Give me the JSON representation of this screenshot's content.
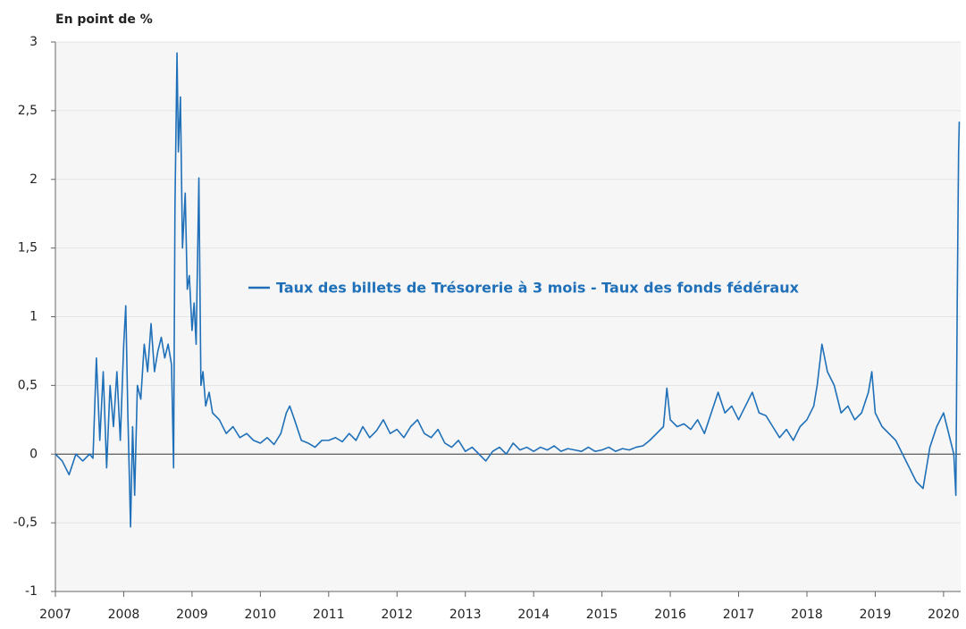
{
  "chart_data": {
    "type": "line",
    "y_axis_label": "En point de %",
    "xlim": [
      2007,
      2020.25
    ],
    "xticks": [
      2007,
      2008,
      2009,
      2010,
      2011,
      2012,
      2013,
      2014,
      2015,
      2016,
      2017,
      2018,
      2019,
      2020
    ],
    "ylim": [
      -1,
      3
    ],
    "yticks": [
      -1,
      {
        "value": -0.5,
        "label": "-0,5"
      },
      0,
      {
        "value": 0.5,
        "label": "0,5"
      },
      1,
      {
        "value": 1.5,
        "label": "1,5"
      },
      2,
      {
        "value": 2.5,
        "label": "2,5"
      },
      3
    ],
    "grid": true,
    "series": [
      {
        "name": "Taux des billets de Trésorerie à 3 mois - Taux des fonds fédéraux",
        "color": "#1f70b8",
        "x": [
          2007.0,
          2007.1,
          2007.2,
          2007.3,
          2007.4,
          2007.5,
          2007.55,
          2007.6,
          2007.65,
          2007.7,
          2007.75,
          2007.8,
          2007.85,
          2007.9,
          2007.95,
          2008.0,
          2008.03,
          2008.06,
          2008.1,
          2008.13,
          2008.16,
          2008.2,
          2008.25,
          2008.3,
          2008.35,
          2008.4,
          2008.45,
          2008.5,
          2008.55,
          2008.6,
          2008.65,
          2008.7,
          2008.73,
          2008.75,
          2008.78,
          2008.8,
          2008.83,
          2008.86,
          2008.9,
          2008.93,
          2008.96,
          2009.0,
          2009.03,
          2009.06,
          2009.1,
          2009.13,
          2009.16,
          2009.2,
          2009.25,
          2009.3,
          2009.4,
          2009.5,
          2009.6,
          2009.7,
          2009.8,
          2009.9,
          2010.0,
          2010.1,
          2010.2,
          2010.3,
          2010.38,
          2010.43,
          2010.5,
          2010.6,
          2010.7,
          2010.8,
          2010.9,
          2011.0,
          2011.1,
          2011.2,
          2011.3,
          2011.4,
          2011.5,
          2011.6,
          2011.7,
          2011.8,
          2011.9,
          2012.0,
          2012.1,
          2012.2,
          2012.3,
          2012.4,
          2012.5,
          2012.6,
          2012.7,
          2012.8,
          2012.9,
          2013.0,
          2013.1,
          2013.2,
          2013.3,
          2013.4,
          2013.5,
          2013.6,
          2013.7,
          2013.8,
          2013.9,
          2014.0,
          2014.1,
          2014.2,
          2014.3,
          2014.4,
          2014.5,
          2014.6,
          2014.7,
          2014.8,
          2014.9,
          2015.0,
          2015.1,
          2015.2,
          2015.3,
          2015.4,
          2015.5,
          2015.6,
          2015.7,
          2015.8,
          2015.9,
          2015.95,
          2016.0,
          2016.1,
          2016.2,
          2016.3,
          2016.4,
          2016.5,
          2016.6,
          2016.7,
          2016.8,
          2016.9,
          2017.0,
          2017.1,
          2017.2,
          2017.3,
          2017.4,
          2017.5,
          2017.6,
          2017.7,
          2017.8,
          2017.9,
          2018.0,
          2018.1,
          2018.15,
          2018.22,
          2018.3,
          2018.4,
          2018.5,
          2018.6,
          2018.7,
          2018.8,
          2018.9,
          2018.95,
          2019.0,
          2019.1,
          2019.2,
          2019.3,
          2019.4,
          2019.5,
          2019.6,
          2019.7,
          2019.75,
          2019.8,
          2019.9,
          2020.0,
          2020.05,
          2020.1,
          2020.15,
          2020.18,
          2020.2,
          2020.22,
          2020.23
        ],
        "values": [
          0.0,
          -0.05,
          -0.15,
          0.0,
          -0.05,
          0.0,
          -0.03,
          0.7,
          0.1,
          0.6,
          -0.1,
          0.5,
          0.2,
          0.6,
          0.1,
          0.8,
          1.08,
          0.3,
          -0.53,
          0.2,
          -0.3,
          0.5,
          0.4,
          0.8,
          0.6,
          0.95,
          0.6,
          0.75,
          0.85,
          0.7,
          0.8,
          0.65,
          -0.1,
          1.8,
          2.92,
          2.2,
          2.6,
          1.5,
          1.9,
          1.2,
          1.3,
          0.9,
          1.1,
          0.8,
          2.01,
          0.5,
          0.6,
          0.35,
          0.45,
          0.3,
          0.25,
          0.15,
          0.2,
          0.12,
          0.15,
          0.1,
          0.08,
          0.12,
          0.07,
          0.15,
          0.3,
          0.35,
          0.25,
          0.1,
          0.08,
          0.05,
          0.1,
          0.1,
          0.12,
          0.09,
          0.15,
          0.1,
          0.2,
          0.12,
          0.17,
          0.25,
          0.15,
          0.18,
          0.12,
          0.2,
          0.25,
          0.15,
          0.12,
          0.18,
          0.08,
          0.05,
          0.1,
          0.02,
          0.05,
          0.0,
          -0.05,
          0.02,
          0.05,
          0.0,
          0.08,
          0.03,
          0.05,
          0.02,
          0.05,
          0.03,
          0.06,
          0.02,
          0.04,
          0.03,
          0.02,
          0.05,
          0.02,
          0.03,
          0.05,
          0.02,
          0.04,
          0.03,
          0.05,
          0.06,
          0.1,
          0.15,
          0.2,
          0.48,
          0.25,
          0.2,
          0.22,
          0.18,
          0.25,
          0.15,
          0.3,
          0.45,
          0.3,
          0.35,
          0.25,
          0.35,
          0.45,
          0.3,
          0.28,
          0.2,
          0.12,
          0.18,
          0.1,
          0.2,
          0.25,
          0.35,
          0.5,
          0.8,
          0.6,
          0.5,
          0.3,
          0.35,
          0.25,
          0.3,
          0.45,
          0.6,
          0.3,
          0.2,
          0.15,
          0.1,
          0.0,
          -0.1,
          -0.2,
          -0.25,
          -0.1,
          0.05,
          0.2,
          0.3,
          0.2,
          0.1,
          0.0,
          -0.3,
          1.1,
          2.2,
          2.42
        ]
      }
    ]
  }
}
